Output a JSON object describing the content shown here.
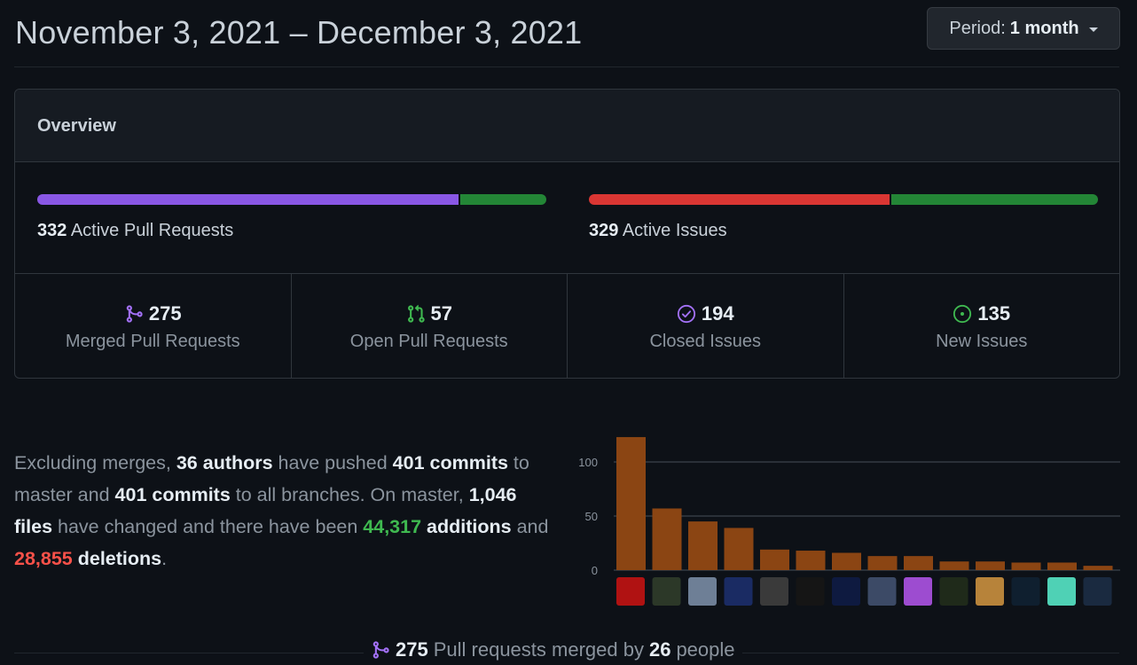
{
  "header": {
    "title": "November 3, 2021 – December 3, 2021",
    "period_label": "Period:",
    "period_value": "1 month"
  },
  "overview": {
    "heading": "Overview",
    "pull_requests": {
      "count": "332",
      "label": "Active Pull Requests",
      "merged_fraction": 0.828,
      "color_merged": "#8957e5",
      "color_open": "#238636"
    },
    "issues": {
      "count": "329",
      "label": "Active Issues",
      "closed_fraction": 0.59,
      "color_closed": "#da3633",
      "color_new": "#238636"
    },
    "stats": [
      {
        "icon": "git-merge-icon",
        "value": "275",
        "label": "Merged Pull Requests",
        "color": "#a371f7"
      },
      {
        "icon": "git-pull-request-icon",
        "value": "57",
        "label": "Open Pull Requests",
        "color": "#3fb950"
      },
      {
        "icon": "issue-closed-icon",
        "value": "194",
        "label": "Closed Issues",
        "color": "#a371f7"
      },
      {
        "icon": "issue-opened-icon",
        "value": "135",
        "label": "New Issues",
        "color": "#3fb950"
      }
    ]
  },
  "summary": {
    "t1": "Excluding merges, ",
    "authors": "36 authors",
    "t2": " have pushed ",
    "commits_master": "401 commits",
    "t3": " to master and ",
    "commits_all": "401 commits",
    "t4": " to all branches. On master, ",
    "files": "1,046 files",
    "t5": " have changed and there have been ",
    "additions_num": "44,317",
    "additions_word": " additions",
    "t6": " and ",
    "deletions_num": "28,855",
    "deletions_word": " deletions",
    "t7": "."
  },
  "chart_data": {
    "type": "bar",
    "title": "",
    "xlabel": "",
    "ylabel": "",
    "ylim": [
      0,
      125
    ],
    "yticks": [
      "0",
      "50",
      "100"
    ],
    "values": [
      123,
      57,
      45,
      39,
      19,
      18,
      16,
      13,
      13,
      8,
      8,
      7,
      7,
      4
    ],
    "bar_color": "#8b4513",
    "avatar_colors": [
      "#b01212",
      "#2c3828",
      "#6e7f96",
      "#1a2b63",
      "#3a3a3a",
      "#151515",
      "#0e1a40",
      "#3c4a66",
      "#9d4cd0",
      "#1f2a1a",
      "#b7833a",
      "#0f1f2f",
      "#4fd1b5",
      "#1a2a40"
    ]
  },
  "footer": {
    "count": "275",
    "t1": " Pull requests merged by ",
    "people": "26",
    "t2": " people"
  }
}
